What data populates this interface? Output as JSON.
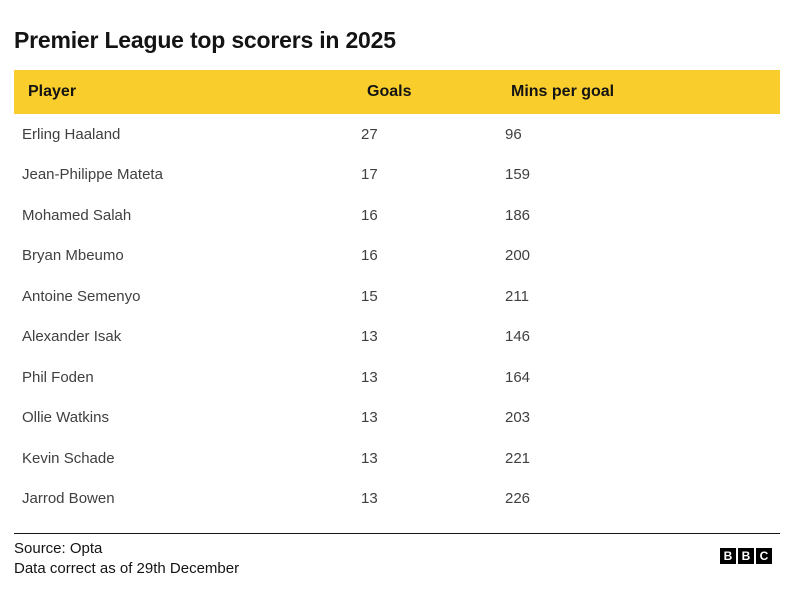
{
  "title": "Premier League top scorers in 2025",
  "chart_data": {
    "type": "table",
    "title": "Premier League top scorers in 2025",
    "columns": [
      "Player",
      "Goals",
      "Mins per goal"
    ],
    "rows": [
      [
        "Erling Haaland",
        27,
        96
      ],
      [
        "Jean-Philippe Mateta",
        17,
        159
      ],
      [
        "Mohamed Salah",
        16,
        186
      ],
      [
        "Bryan Mbeumo",
        16,
        200
      ],
      [
        "Antoine Semenyo",
        15,
        211
      ],
      [
        "Alexander Isak",
        13,
        146
      ],
      [
        "Phil Foden",
        13,
        164
      ],
      [
        "Ollie Watkins",
        13,
        203
      ],
      [
        "Kevin Schade",
        13,
        221
      ],
      [
        "Jarrod Bowen",
        13,
        226
      ]
    ],
    "source": "Source: Opta",
    "note": "Data correct as of 29th December"
  },
  "footer": {
    "source": "Source: Opta",
    "note": "Data correct as of 29th December"
  },
  "logo": {
    "letters": [
      "B",
      "B",
      "C"
    ]
  },
  "colors": {
    "header_bg": "#F9CD2B",
    "title_text": "#141414",
    "row_text": "#404040",
    "footer_text": "#141414",
    "footer_rule": "#141414",
    "logo_bg": "#000000",
    "logo_text": "#ffffff",
    "page_bg": "#ffffff"
  }
}
